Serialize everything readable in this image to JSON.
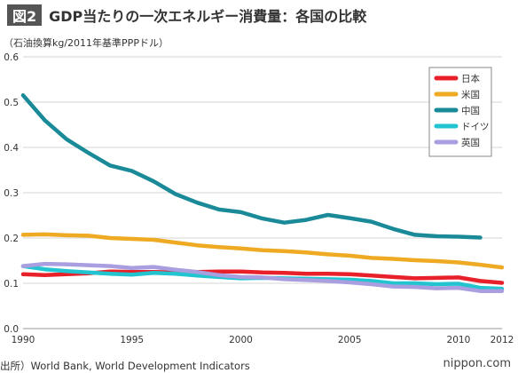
{
  "header": {
    "badge": "図2",
    "title": "GDP当たりの一次エネルギー消費量：各国の比較"
  },
  "footer": {
    "source": "出所）World Bank, World Development Indicators",
    "brand": "nippon.com"
  },
  "chart_data": {
    "type": "line",
    "title": "GDP当たりの一次エネルギー消費量：各国の比較",
    "ylabel": "（石油換算kg/2011年基準PPPドル）",
    "xlabel": "",
    "xlim": [
      1990,
      2012
    ],
    "ylim": [
      0,
      0.6
    ],
    "grid": true,
    "legend_position": "top-right",
    "y_ticks": [
      "0.0",
      "0.1",
      "0.2",
      "0.3",
      "0.4",
      "0.5",
      "0.6"
    ],
    "x_ticks": [
      "1990",
      "1995",
      "2000",
      "2005",
      "2010",
      "2012"
    ],
    "x": [
      1990,
      1991,
      1992,
      1993,
      1994,
      1995,
      1996,
      1997,
      1998,
      1999,
      2000,
      2001,
      2002,
      2003,
      2004,
      2005,
      2006,
      2007,
      2008,
      2009,
      2010,
      2011,
      2012
    ],
    "series": [
      {
        "name": "日本",
        "color": "#e8202a",
        "values": [
          0.12,
          0.118,
          0.12,
          0.122,
          0.126,
          0.125,
          0.125,
          0.124,
          0.125,
          0.126,
          0.126,
          0.124,
          0.123,
          0.121,
          0.121,
          0.12,
          0.117,
          0.114,
          0.111,
          0.112,
          0.113,
          0.105,
          0.101
        ]
      },
      {
        "name": "米国",
        "color": "#eeaa22",
        "values": [
          0.207,
          0.208,
          0.206,
          0.205,
          0.2,
          0.198,
          0.196,
          0.19,
          0.184,
          0.18,
          0.177,
          0.173,
          0.171,
          0.168,
          0.164,
          0.161,
          0.156,
          0.154,
          0.151,
          0.149,
          0.146,
          0.141,
          0.135
        ]
      },
      {
        "name": "中国",
        "color": "#1a8a99",
        "values": [
          0.515,
          0.46,
          0.418,
          0.388,
          0.36,
          0.348,
          0.325,
          0.297,
          0.278,
          0.263,
          0.257,
          0.243,
          0.234,
          0.24,
          0.251,
          0.244,
          0.236,
          0.22,
          0.207,
          0.204,
          0.203,
          0.201,
          null
        ]
      },
      {
        "name": "ドイツ",
        "color": "#22c4d0",
        "values": [
          0.138,
          0.131,
          0.127,
          0.124,
          0.121,
          0.119,
          0.123,
          0.121,
          0.117,
          0.114,
          0.111,
          0.112,
          0.111,
          0.11,
          0.109,
          0.108,
          0.105,
          0.1,
          0.1,
          0.098,
          0.099,
          0.09,
          0.088
        ]
      },
      {
        "name": "英国",
        "color": "#a89ee0",
        "values": [
          0.138,
          0.143,
          0.142,
          0.14,
          0.138,
          0.134,
          0.136,
          0.13,
          0.125,
          0.118,
          0.114,
          0.113,
          0.109,
          0.107,
          0.105,
          0.102,
          0.098,
          0.093,
          0.092,
          0.089,
          0.09,
          0.083,
          0.083
        ]
      }
    ]
  }
}
